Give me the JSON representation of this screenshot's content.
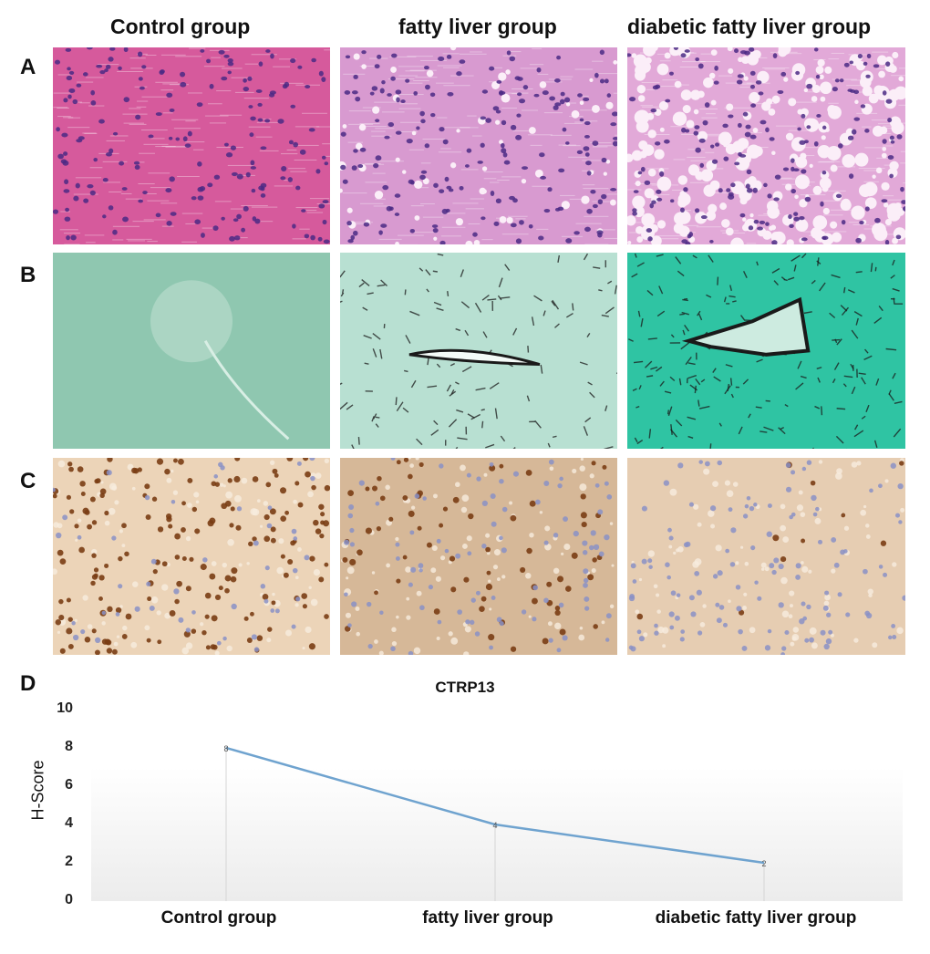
{
  "columns": [
    "Control group",
    "fatty liver group",
    "diabetic fatty liver group"
  ],
  "rows": [
    "A",
    "B",
    "C"
  ],
  "panel_label_d": "D",
  "chart_data": {
    "type": "line",
    "title": "CTRP13",
    "categories": [
      "Control group",
      "fatty liver group",
      "diabetic fatty liver group"
    ],
    "values": [
      8,
      4,
      2
    ],
    "data_labels": [
      "8",
      "4",
      "2"
    ],
    "xlabel": "",
    "ylabel": "H-Score",
    "ylim": [
      0,
      10
    ],
    "yticks": [
      "0",
      "2",
      "4",
      "6",
      "8",
      "10"
    ],
    "grid": false,
    "line_color": "#6fa3cf"
  },
  "colors": {
    "he_bg": "#d65a9c",
    "he_bg2": "#d89ad0",
    "he_bg3": "#e2a9d8",
    "he_nucleus": "#4b2a85",
    "stain_bg1": "#8fc7b0",
    "stain_bg2": "#b8e0d2",
    "stain_bg3": "#2fc4a3",
    "stain_dark": "#1a1a1a",
    "ihc_bg1": "#ecd4b8",
    "ihc_bg2": "#d6b898",
    "ihc_bg3": "#e6cdb2",
    "ihc_brown": "#7a3d14",
    "ihc_blue": "#8a90c6"
  }
}
